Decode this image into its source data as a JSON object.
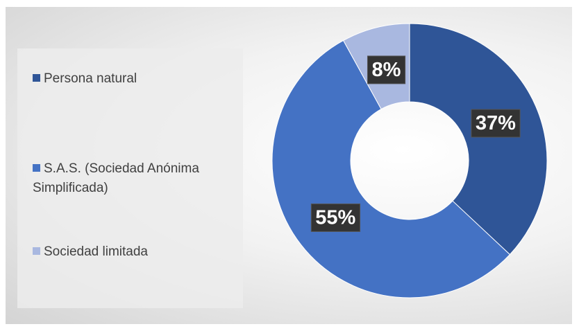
{
  "chart_data": {
    "type": "donut",
    "categories": [
      "Persona natural",
      "S.A.S. (Sociedad Anónima Simplificada)",
      "Sociedad limitada"
    ],
    "values": [
      37,
      55,
      8
    ],
    "value_labels": [
      "37%",
      "55%",
      "8%"
    ],
    "colors": [
      "#2f5597",
      "#4472c4",
      "#a9b8e0"
    ]
  }
}
